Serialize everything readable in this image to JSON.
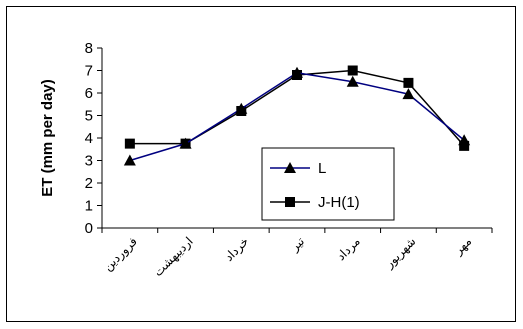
{
  "chart_data": {
    "type": "line",
    "title": "",
    "xlabel": "",
    "ylabel": "ET (mm per day)",
    "ylim": [
      0,
      8
    ],
    "yticks": [
      0,
      1,
      2,
      3,
      4,
      5,
      6,
      7,
      8
    ],
    "grid": false,
    "legend_position": "bottom-right",
    "categories": [
      "فروردین",
      "اردیبهشت",
      "خرداد",
      "تیر",
      "مرداد",
      "شهریور",
      "مهر"
    ],
    "series": [
      {
        "name": "L",
        "marker": "triangle",
        "color": "#000080",
        "values": [
          3.0,
          3.75,
          5.3,
          6.9,
          6.5,
          5.95,
          3.9
        ]
      },
      {
        "name": "J-H(1)",
        "marker": "square",
        "color": "#000000",
        "values": [
          3.75,
          3.75,
          5.2,
          6.8,
          7.0,
          6.45,
          3.65
        ]
      }
    ]
  }
}
